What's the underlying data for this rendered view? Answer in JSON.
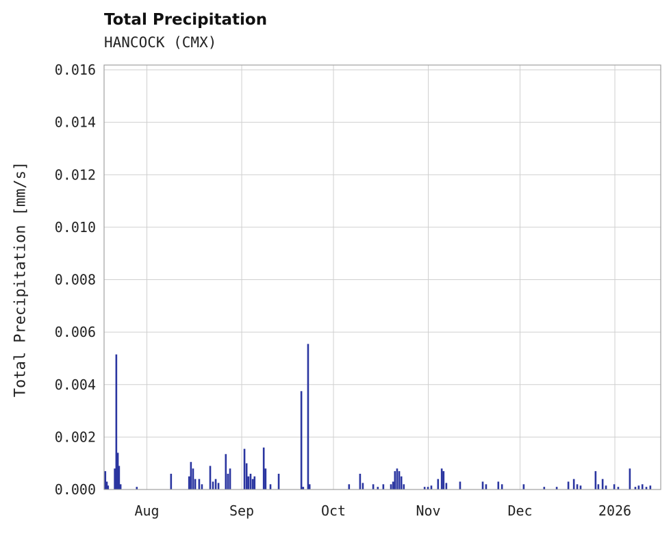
{
  "chart_data": {
    "type": "bar",
    "title": "Total Precipitation",
    "subtitle": "HANCOCK (CMX)",
    "station": "HANCOCK (CMX)",
    "xlabel": "",
    "ylabel": "Total Precipitation [mm/s]",
    "ylim": [
      0,
      0.016
    ],
    "grid": true,
    "legend": "none",
    "bar_color": "#2a35a0",
    "grid_color": "#cfcfcf",
    "spine_color": "#a0a0a0",
    "x_start_date": "2025-07-18",
    "x_end_date": "2026-01-16",
    "x_span_days": 182,
    "yticks": {
      "values": [
        0,
        0.002,
        0.004,
        0.006,
        0.008,
        0.01,
        0.012,
        0.014,
        0.016
      ],
      "labels": [
        "0.000",
        "0.002",
        "0.004",
        "0.006",
        "0.008",
        "0.010",
        "0.012",
        "0.014",
        "0.016"
      ]
    },
    "xticks": [
      {
        "label": "Aug",
        "day": 14
      },
      {
        "label": "Sep",
        "day": 45
      },
      {
        "label": "Oct",
        "day": 75
      },
      {
        "label": "Nov",
        "day": 106
      },
      {
        "label": "Dec",
        "day": 136
      },
      {
        "label": "2026",
        "day": 167
      }
    ],
    "points_format": "[days since 2025-07-18, precipitation mm/s]",
    "points": [
      [
        0.4,
        0.0007
      ],
      [
        0.9,
        0.0003
      ],
      [
        1.3,
        0.00015
      ],
      [
        3.5,
        0.0008
      ],
      [
        4.0,
        0.00515
      ],
      [
        4.5,
        0.0014
      ],
      [
        4.9,
        0.0009
      ],
      [
        5.4,
        0.0002
      ],
      [
        10.7,
        0.0001
      ],
      [
        21.9,
        0.0006
      ],
      [
        27.8,
        0.0005
      ],
      [
        28.4,
        0.00105
      ],
      [
        29.1,
        0.0008
      ],
      [
        29.8,
        0.0004
      ],
      [
        31.1,
        0.0004
      ],
      [
        32.0,
        0.0002
      ],
      [
        34.7,
        0.0009
      ],
      [
        35.6,
        0.0003
      ],
      [
        36.5,
        0.0004
      ],
      [
        37.4,
        0.00025
      ],
      [
        39.8,
        0.00135
      ],
      [
        40.5,
        0.0006
      ],
      [
        41.2,
        0.0008
      ],
      [
        45.9,
        0.00155
      ],
      [
        46.6,
        0.001
      ],
      [
        47.2,
        0.0005
      ],
      [
        47.9,
        0.0006
      ],
      [
        48.6,
        0.0004
      ],
      [
        49.2,
        0.0005
      ],
      [
        52.2,
        0.0016
      ],
      [
        52.8,
        0.0008
      ],
      [
        54.4,
        0.0002
      ],
      [
        57.1,
        0.0006
      ],
      [
        64.5,
        0.00375
      ],
      [
        65.1,
        0.0001
      ],
      [
        66.7,
        0.00555
      ],
      [
        67.2,
        0.0002
      ],
      [
        80.1,
        0.0002
      ],
      [
        83.7,
        0.0006
      ],
      [
        84.6,
        0.00025
      ],
      [
        88.0,
        0.0002
      ],
      [
        89.5,
        0.0001
      ],
      [
        91.3,
        0.0002
      ],
      [
        93.8,
        0.0002
      ],
      [
        94.5,
        0.0003
      ],
      [
        95.1,
        0.0007
      ],
      [
        95.8,
        0.0008
      ],
      [
        96.5,
        0.0007
      ],
      [
        97.2,
        0.0005
      ],
      [
        98.0,
        0.0002
      ],
      [
        104.8,
        0.0001
      ],
      [
        105.9,
        0.0001
      ],
      [
        107.0,
        0.00015
      ],
      [
        109.2,
        0.0004
      ],
      [
        110.4,
        0.0008
      ],
      [
        111.0,
        0.0007
      ],
      [
        111.9,
        0.00025
      ],
      [
        116.4,
        0.0003
      ],
      [
        123.8,
        0.0003
      ],
      [
        124.9,
        0.0002
      ],
      [
        128.9,
        0.0003
      ],
      [
        130.1,
        0.0002
      ],
      [
        137.2,
        0.0002
      ],
      [
        143.9,
        0.0001
      ],
      [
        148.0,
        0.0001
      ],
      [
        151.8,
        0.0003
      ],
      [
        153.6,
        0.0004
      ],
      [
        154.7,
        0.0002
      ],
      [
        155.8,
        0.00015
      ],
      [
        160.7,
        0.0007
      ],
      [
        161.6,
        0.0002
      ],
      [
        163.0,
        0.0004
      ],
      [
        164.1,
        0.00015
      ],
      [
        166.8,
        0.0002
      ],
      [
        168.1,
        0.0001
      ],
      [
        171.9,
        0.0008
      ],
      [
        173.7,
        0.0001
      ],
      [
        174.8,
        0.00015
      ],
      [
        176.0,
        0.0002
      ],
      [
        177.3,
        0.0001
      ],
      [
        178.6,
        0.00015
      ]
    ]
  }
}
